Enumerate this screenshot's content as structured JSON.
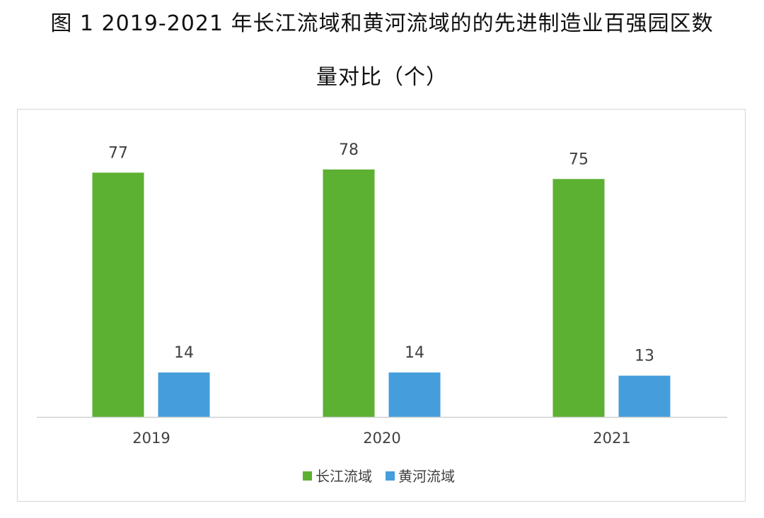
{
  "title_lines": [
    "图 1  2019-2021 年长江流域和黄河流域的的先进制造业百强园区数",
    "量对比（个）"
  ],
  "colors": {
    "series_1": "#5cb032",
    "series_2": "#459ddb",
    "axis": "#d0d0d0",
    "label": "#404040"
  },
  "chart_data": {
    "type": "bar",
    "title": "图 1  2019-2021 年长江流域和黄河流域的的先进制造业百强园区数量对比（个）",
    "xlabel": "",
    "ylabel": "",
    "categories": [
      "2019",
      "2020",
      "2021"
    ],
    "series": [
      {
        "name": "长江流域",
        "values": [
          77,
          78,
          75
        ]
      },
      {
        "name": "黄河流域",
        "values": [
          14,
          14,
          13
        ]
      }
    ],
    "ylim": [
      0,
      78
    ],
    "grid": false,
    "data_labels": true,
    "legend_position": "bottom"
  }
}
